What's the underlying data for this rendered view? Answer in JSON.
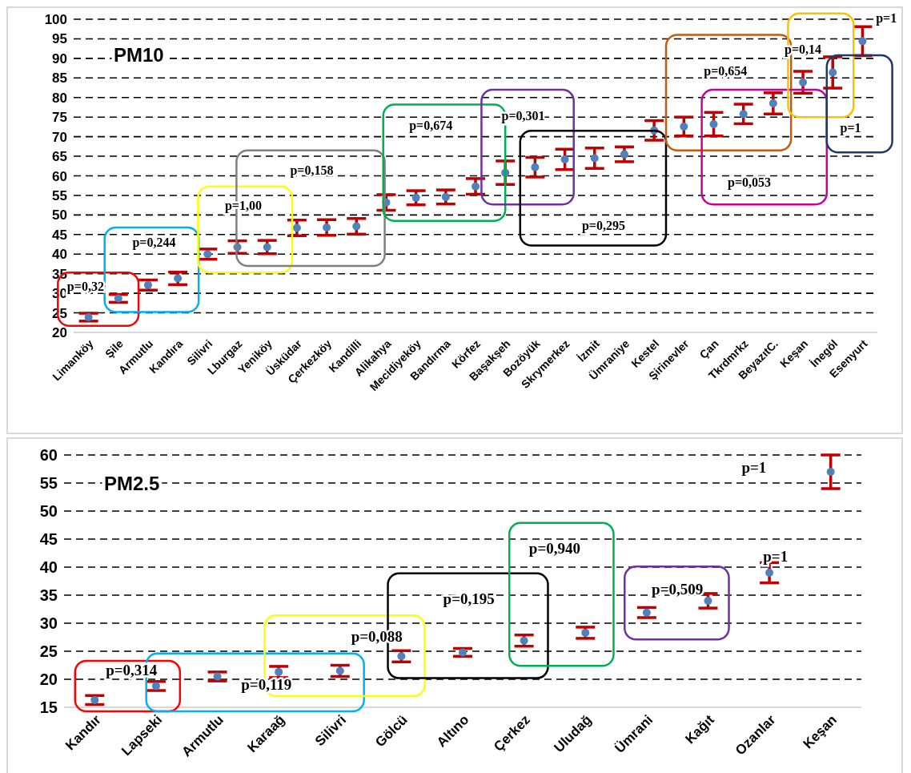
{
  "chart_data": [
    {
      "type": "scatter",
      "title": "PM10",
      "categories": [
        "Limanköy",
        "Şile",
        "Armutlu",
        "Kandıra",
        "Silivri",
        "Lburgaz",
        "Yeniköy",
        "Üsküdar",
        "Çerkezköy",
        "Kandilli",
        "Alikahya",
        "Mecidiyeköy",
        "Bandırma",
        "Körfez",
        "Başakşeh",
        "Bozöyük",
        "Skrymerkez",
        "İzmit",
        "Ümraniye",
        "Kestel",
        "Şirinevler",
        "Çan",
        "Tkrdmrkz",
        "BeyazıtC.",
        "Keşan",
        "İnegöl",
        "Esenyurt"
      ],
      "series": [
        {
          "color": "#4f81bd",
          "values": [
            23.9,
            28.7,
            32.1,
            33.8,
            40.0,
            41.8,
            41.8,
            46.7,
            46.8,
            47.1,
            53.2,
            54.4,
            54.6,
            57.3,
            60.8,
            62.2,
            64.2,
            64.5,
            65.5,
            71.6,
            72.6,
            73.2,
            75.8,
            78.5,
            83.9,
            86.4,
            94.4
          ],
          "errors": [
            1,
            1,
            1.3,
            1.6,
            1.3,
            1.6,
            1.7,
            2,
            2,
            2,
            2,
            1.8,
            1.8,
            2,
            3,
            2.5,
            2.6,
            2.6,
            1.9,
            2.5,
            2.4,
            3,
            2.5,
            2.7,
            2.8,
            4,
            3.7
          ]
        }
      ],
      "ylim": [
        20,
        100
      ],
      "yticks": [
        20,
        25,
        30,
        35,
        40,
        45,
        50,
        55,
        60,
        65,
        70,
        75,
        80,
        85,
        90,
        95,
        100
      ],
      "grid": "y",
      "marker": "circle",
      "legend": false,
      "annotations": [
        "p=0,32",
        "p=0,244",
        "p=1,00",
        "p=0,158",
        "p=0,674",
        "p=0,301",
        "p=0,295",
        "p=0,654",
        "p=0,053",
        "p=0,14",
        "p=1",
        "p=1"
      ]
    },
    {
      "type": "scatter",
      "title": "PM2.5",
      "categories": [
        "Kandır",
        "Lapseki",
        "Armutlu",
        "Karaağ",
        "Silivri",
        "Gölcü",
        "Altıno",
        "Çerkez",
        "Uludağ",
        "Ümrani",
        "Kağıt",
        "Ozanlar",
        "Keşan"
      ],
      "series": [
        {
          "color": "#4f81bd",
          "values": [
            16.3,
            18.8,
            20.5,
            21.3,
            21.5,
            24.1,
            24.8,
            26.9,
            28.3,
            31.9,
            34.0,
            39.0,
            57.0
          ],
          "errors": [
            0.8,
            0.8,
            0.8,
            1,
            1,
            1,
            0.7,
            1,
            1,
            0.9,
            1.3,
            1.8,
            3
          ]
        }
      ],
      "ylim": [
        15,
        60
      ],
      "yticks": [
        15,
        20,
        25,
        30,
        35,
        40,
        45,
        50,
        55,
        60
      ],
      "grid": "y",
      "marker": "circle",
      "legend": false,
      "annotations": [
        "p=0,314",
        "p=0,119",
        "p=0,088",
        "p=0,195",
        "p=0,940",
        "p=0,509",
        "p=1",
        "p=1"
      ]
    }
  ]
}
